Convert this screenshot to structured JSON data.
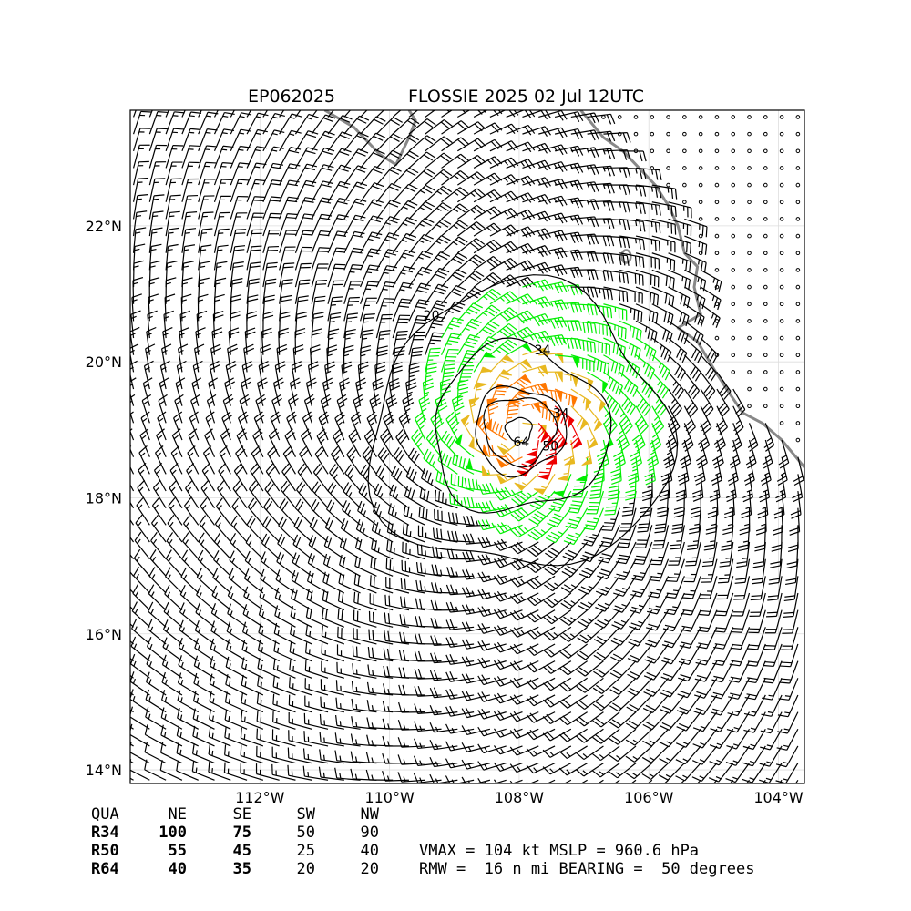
{
  "header": {
    "storm_id": "EP062025",
    "storm_title": "FLOSSIE 2025 02 Jul 12UTC"
  },
  "map": {
    "lon_range": [
      -114.0,
      -103.6
    ],
    "lat_range": [
      13.8,
      23.7
    ],
    "x_ticks": [
      {
        "lon": -112,
        "label": "112°W"
      },
      {
        "lon": -110,
        "label": "110°W"
      },
      {
        "lon": -108,
        "label": "108°W"
      },
      {
        "lon": -106,
        "label": "106°W"
      },
      {
        "lon": -104,
        "label": "104°W"
      }
    ],
    "y_ticks": [
      {
        "lat": 14,
        "label": "14°N"
      },
      {
        "lat": 16,
        "label": "16°N"
      },
      {
        "lat": 18,
        "label": "18°N"
      },
      {
        "lat": 20,
        "label": "20°N"
      },
      {
        "lat": 22,
        "label": "22°N"
      }
    ],
    "gridlines": true,
    "storm_center": {
      "lon": -108.0,
      "lat": 19.0
    },
    "land_color": "#888888",
    "barb_colors": {
      "below_34": "#000000",
      "34_to_50": "#00ee00",
      "50_to_64": "#e8b820",
      "64_plus_orange": "#ff7700",
      "64_plus_red": "#ee0000"
    },
    "contours": [
      {
        "label": "20",
        "radius_deg": 2.3
      },
      {
        "label": "34",
        "radius_deg": 1.35
      },
      {
        "label": "34",
        "radius_deg": 0.7
      },
      {
        "label": "50",
        "radius_deg": 0.55
      },
      {
        "label": "64",
        "radius_deg": 0.2
      }
    ]
  },
  "wind_table": {
    "header": [
      "QUA",
      "NE",
      "SE",
      "SW",
      "NW"
    ],
    "rows": [
      {
        "label": "R34",
        "values": [
          "100",
          "75",
          "50",
          "90"
        ]
      },
      {
        "label": "R50",
        "values": [
          "55",
          "45",
          "25",
          "40"
        ]
      },
      {
        "label": "R64",
        "values": [
          "40",
          "35",
          "20",
          "20"
        ]
      }
    ]
  },
  "summary": {
    "line1": "VMAX = 104 kt MSLP = 960.6 hPa",
    "line2": "RMW =  16 n mi BEARING =  50 degrees"
  }
}
